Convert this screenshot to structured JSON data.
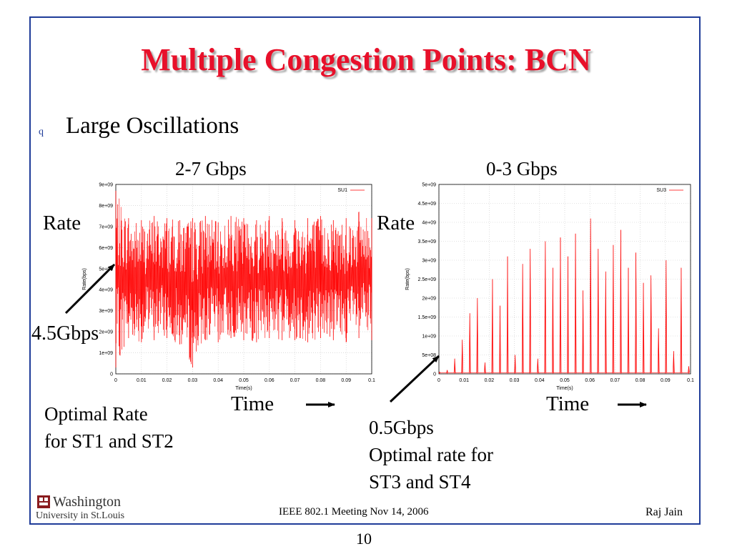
{
  "slide": {
    "title": "Multiple Congestion Points: BCN",
    "bullet_marker": "q",
    "bullet_text": "Large Oscillations"
  },
  "annotations": {
    "left_range": "2-7 Gbps",
    "right_range": "0-3 Gbps",
    "left_rate": "Rate",
    "right_rate": "Rate",
    "left_optimal_marker": "4.5Gbps",
    "left_time": "Time",
    "right_time": "Time",
    "left_note_line1": "Optimal Rate",
    "left_note_line2": "for ST1 and ST2",
    "right_note_line1": "0.5Gbps",
    "right_note_line2": "Optimal rate for",
    "right_note_line3": "ST3 and ST4"
  },
  "footer": {
    "logo_line1": "Washington",
    "logo_line2": "University in St.Louis",
    "center_text": "IEEE 802.1 Meeting  Nov 14, 2006",
    "right_text": "Raj Jain",
    "page_number": "10"
  },
  "colors": {
    "series": "#ff0000",
    "title": "#e8102a",
    "frame": "#1f3c99"
  },
  "chart_data": [
    {
      "type": "line",
      "xlabel": "Time(s)",
      "ylabel": "Rate(bps)",
      "xlim": [
        0,
        0.1
      ],
      "ylim": [
        0,
        9000000000
      ],
      "x_ticks": [
        "0",
        "0.01",
        "0.02",
        "0.03",
        "0.04",
        "0.05",
        "0.06",
        "0.07",
        "0.08",
        "0.09",
        "0.1"
      ],
      "y_ticks": [
        "0",
        "1e+09",
        "2e+09",
        "3e+09",
        "4e+09",
        "5e+09",
        "6e+09",
        "7e+09",
        "8e+09",
        "9e+09"
      ],
      "grid": true,
      "legend_position": "top-right",
      "series": [
        {
          "name": "SU1",
          "x": [
            0,
            0.005,
            0.01,
            0.015,
            0.02,
            0.025,
            0.03,
            0.035,
            0.04,
            0.045,
            0.05,
            0.055,
            0.06,
            0.065,
            0.07,
            0.075,
            0.08,
            0.085,
            0.09,
            0.095,
            0.1
          ],
          "y_min": [
            300000000,
            1700000000,
            1500000000,
            1600000000,
            1700000000,
            1400000000,
            300000000,
            1600000000,
            1500000000,
            1700000000,
            1600000000,
            1500000000,
            1700000000,
            1600000000,
            1600000000,
            1500000000,
            1700000000,
            1600000000,
            1500000000,
            1700000000,
            1600000000
          ],
          "y_max": [
            8700000000,
            7400000000,
            7300000000,
            7500000000,
            7400000000,
            7300000000,
            7400000000,
            7500000000,
            7200000000,
            7500000000,
            7400000000,
            7300000000,
            7500000000,
            7400000000,
            7300000000,
            7400000000,
            7500000000,
            7300000000,
            7400000000,
            7700000000,
            7400000000
          ]
        }
      ]
    },
    {
      "type": "line",
      "xlabel": "Time(s)",
      "ylabel": "Rate(bps)",
      "xlim": [
        0,
        0.1
      ],
      "ylim": [
        0,
        5000000000
      ],
      "x_ticks": [
        "0",
        "0.01",
        "0.02",
        "0.03",
        "0.04",
        "0.05",
        "0.06",
        "0.07",
        "0.08",
        "0.09",
        "0.1"
      ],
      "y_ticks": [
        "0",
        "5e+08",
        "1e+09",
        "1.5e+09",
        "2e+09",
        "2.5e+09",
        "3e+09",
        "3.5e+09",
        "4e+09",
        "4.5e+09",
        "5e+09"
      ],
      "grid": true,
      "legend_position": "top-right",
      "series": [
        {
          "name": "SU3",
          "x": [
            0,
            0.003,
            0.006,
            0.009,
            0.012,
            0.015,
            0.018,
            0.021,
            0.024,
            0.027,
            0.03,
            0.033,
            0.036,
            0.039,
            0.042,
            0.045,
            0.048,
            0.051,
            0.054,
            0.057,
            0.06,
            0.063,
            0.066,
            0.069,
            0.072,
            0.075,
            0.078,
            0.081,
            0.084,
            0.087,
            0.09,
            0.093,
            0.096,
            0.099
          ],
          "y": [
            50000000,
            100000000,
            400000000,
            900000000,
            1600000000,
            2000000000,
            300000000,
            2500000000,
            1800000000,
            3100000000,
            500000000,
            2900000000,
            3300000000,
            400000000,
            3500000000,
            2800000000,
            3600000000,
            3100000000,
            3700000000,
            2200000000,
            4100000000,
            3300000000,
            2700000000,
            3400000000,
            3800000000,
            2800000000,
            3200000000,
            2400000000,
            2600000000,
            1200000000,
            3000000000,
            600000000,
            2800000000,
            200000000
          ]
        }
      ]
    }
  ]
}
